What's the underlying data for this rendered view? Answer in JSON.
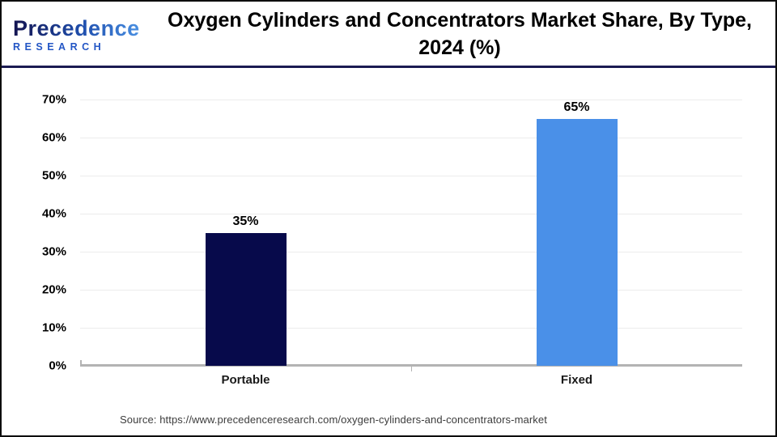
{
  "header": {
    "logo": {
      "line1": "Precedence",
      "line2": "RESEARCH"
    },
    "title_line1": "Oxygen Cylinders and Concentrators Market Share, By Type,",
    "title_line2": "2024 (%)"
  },
  "chart_data": {
    "type": "bar",
    "title": "Oxygen Cylinders and Concentrators Market Share, By Type, 2024 (%)",
    "categories": [
      "Portable",
      "Fixed"
    ],
    "values": [
      35,
      65
    ],
    "value_labels": [
      "35%",
      "65%"
    ],
    "bar_colors": [
      "#070a4b",
      "#4a90e8"
    ],
    "xlabel": "",
    "ylabel": "",
    "ylim": [
      0,
      70
    ],
    "ytick_step": 10,
    "ytick_labels": [
      "0%",
      "10%",
      "20%",
      "30%",
      "40%",
      "50%",
      "60%",
      "70%"
    ],
    "grid": "horizontal",
    "legend": "none"
  },
  "footer": {
    "source": "Source: https://www.precedenceresearch.com/oxygen-cylinders-and-concentrators-market"
  },
  "colors": {
    "bar_portable": "#070a4b",
    "bar_fixed": "#4a90e8",
    "header_divider": "#1b1b52",
    "axis_line": "#b3b3b3",
    "gridline": "#ececec"
  }
}
